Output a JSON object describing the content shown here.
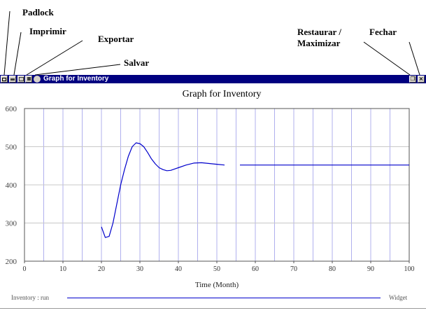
{
  "callouts": {
    "padlock": "Padlock",
    "imprimir": "Imprimir",
    "exportar": "Exportar",
    "salvar": "Salvar",
    "restaurar_line1": "Restaurar /",
    "restaurar_line2": "Maximizar",
    "fechar": "Fechar"
  },
  "window": {
    "title": "Graph for Inventory",
    "icons": [
      "padlock-icon",
      "print-icon",
      "export-icon",
      "save-icon"
    ],
    "restore_glyph": "❐",
    "close_glyph": "×"
  },
  "chart_data": {
    "type": "line",
    "title": "Graph for Inventory",
    "xlabel": "Time (Month)",
    "ylabel": "",
    "xlim": [
      0,
      100
    ],
    "ylim": [
      200,
      600
    ],
    "x_ticks": [
      0,
      10,
      20,
      30,
      40,
      50,
      60,
      70,
      80,
      90,
      100
    ],
    "y_ticks": [
      200,
      300,
      400,
      500,
      600
    ],
    "grid": true,
    "series": [
      {
        "name": "Inventory : run",
        "color": "#0000cc",
        "points": [
          [
            20,
            290
          ],
          [
            21,
            262
          ],
          [
            22,
            265
          ],
          [
            23,
            300
          ],
          [
            24,
            350
          ],
          [
            25,
            400
          ],
          [
            26,
            440
          ],
          [
            27,
            475
          ],
          [
            28,
            500
          ],
          [
            29,
            510
          ],
          [
            30,
            508
          ],
          [
            31,
            500
          ],
          [
            32,
            485
          ],
          [
            33,
            468
          ],
          [
            34,
            455
          ],
          [
            35,
            445
          ],
          [
            36,
            440
          ],
          [
            37,
            437
          ],
          [
            38,
            438
          ],
          [
            40,
            445
          ],
          [
            42,
            452
          ],
          [
            44,
            457
          ],
          [
            46,
            458
          ],
          [
            48,
            456
          ],
          [
            50,
            454
          ],
          [
            52,
            452
          ]
        ]
      },
      {
        "name": "Inventory : run",
        "color": "#0000cc",
        "points": [
          [
            56,
            452
          ],
          [
            100,
            452
          ]
        ]
      }
    ],
    "legend": {
      "series_label": "Inventory : run",
      "units": "Widget"
    }
  }
}
